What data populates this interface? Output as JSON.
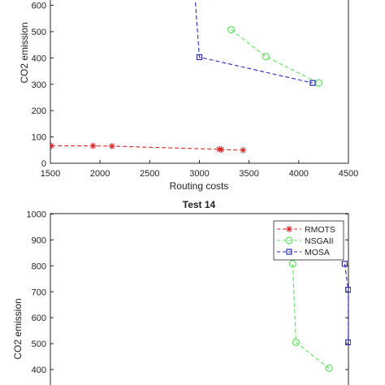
{
  "chart_data": [
    {
      "type": "line",
      "title": "",
      "xlabel": "Routing costs",
      "ylabel": "CO2 emission",
      "xlim": [
        1500,
        4500
      ],
      "ylim": [
        0,
        650
      ],
      "xticks": [
        "1500",
        "2000",
        "2500",
        "3000",
        "3500",
        "4000",
        "4500"
      ],
      "yticks": [
        "0",
        "100",
        "200",
        "300",
        "400",
        "500",
        "600"
      ],
      "grid": false,
      "series": [
        {
          "name": "RMOTS",
          "color": "#d62728",
          "marker": "star",
          "dash": "dashed",
          "x": [
            1510,
            1930,
            2120,
            3200,
            3220,
            3440
          ],
          "y": [
            66,
            66,
            65,
            53,
            52,
            50
          ]
        },
        {
          "name": "NSGAII",
          "color": "#5ee35e",
          "marker": "circle",
          "dash": "dashed",
          "x": [
            3320,
            3670,
            4200
          ],
          "y": [
            507,
            405,
            305
          ]
        },
        {
          "name": "MOSA",
          "color": "#2b2bb8",
          "marker": "square",
          "dash": "dashed",
          "x": [
            2950,
            3000,
            4140
          ],
          "y": [
            660,
            403,
            305
          ]
        }
      ]
    },
    {
      "type": "line",
      "title": "Test 14",
      "xlabel": "",
      "ylabel": "CO2 emission",
      "ylim": [
        380,
        1000
      ],
      "yticks": [
        "400",
        "500",
        "600",
        "700",
        "800",
        "900",
        "1000"
      ],
      "legend": "top-right",
      "grid": false,
      "series": [
        {
          "name": "RMOTS",
          "color": "#d62728",
          "marker": "star",
          "dash": "dashed",
          "x": [],
          "y": []
        },
        {
          "name": "NSGAII",
          "color": "#5ee35e",
          "marker": "circle",
          "dash": "dashed",
          "x": [
            0.9,
            2.0,
            13.0
          ],
          "y": [
            808,
            505,
            405
          ]
        },
        {
          "name": "MOSA",
          "color": "#2b2bb8",
          "marker": "square",
          "dash": "dashed",
          "x": [
            18.2,
            19.4,
            19.4
          ],
          "y": [
            808,
            708,
            505
          ]
        }
      ]
    }
  ]
}
